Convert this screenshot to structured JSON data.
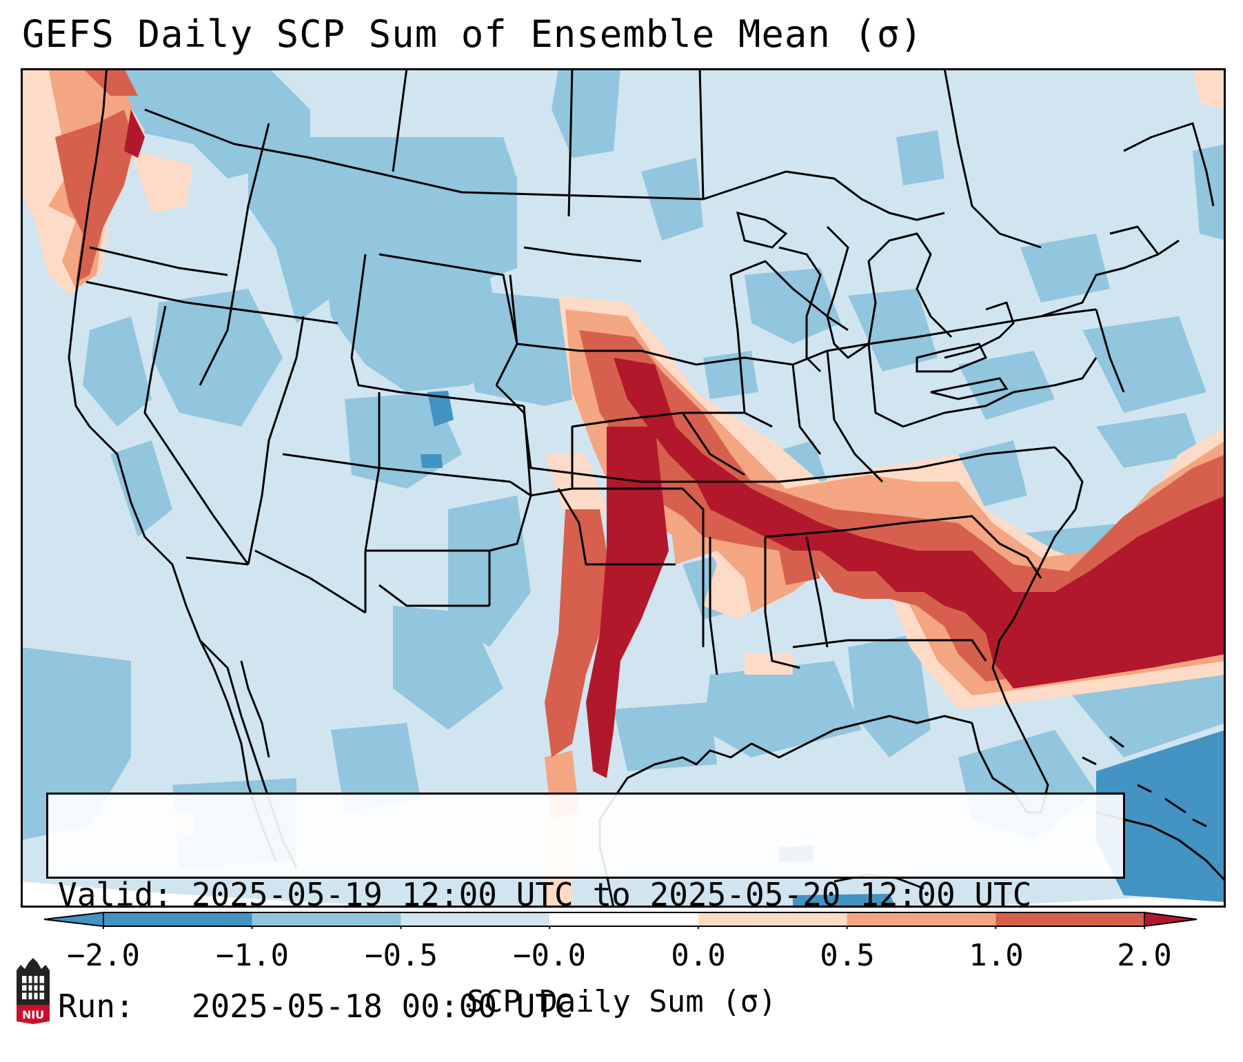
{
  "title": "GEFS Daily SCP Sum of Ensemble Mean (σ)",
  "info": {
    "valid_line": "Valid: 2025-05-19 12:00 UTC to 2025-05-20 12:00 UTC",
    "run_line": "Run:   2025-05-18 00:00 UTC"
  },
  "colorbar": {
    "label": "SCP Daily Sum (σ)",
    "ticks": [
      "−2.0",
      "−1.0",
      "−0.5",
      "−0.0",
      "0.0",
      "0.5",
      "1.0",
      "2.0"
    ],
    "colors": [
      "#4393c3",
      "#92c5de",
      "#d1e5f0",
      "#ffffff",
      "#fddbc7",
      "#f4a582",
      "#d6604d",
      "#b2182b"
    ],
    "under_color": "#4393c3",
    "over_color": "#b2182b"
  },
  "logo": {
    "text": "NIU",
    "color": "#c8102e"
  }
}
